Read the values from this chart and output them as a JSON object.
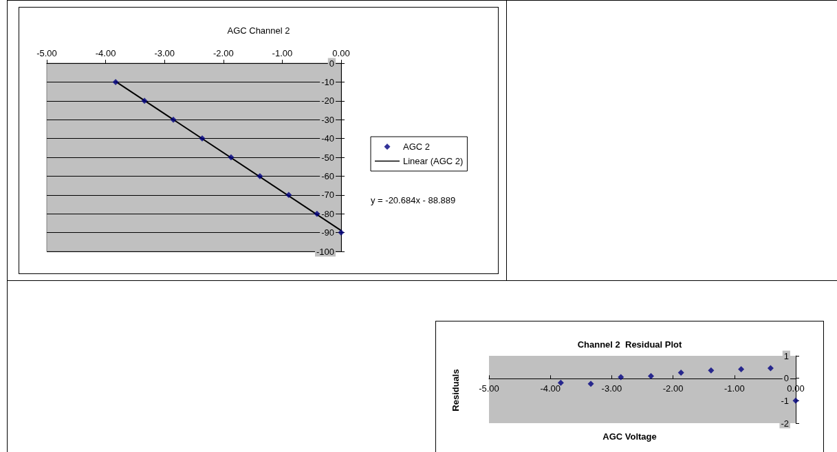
{
  "chart_data": [
    {
      "type": "scatter",
      "title": "AGC Channel 2",
      "x": [
        -3.83,
        -3.34,
        -2.85,
        -2.36,
        -1.87,
        -1.38,
        -0.89,
        -0.41,
        0
      ],
      "series": [
        {
          "name": "AGC 2",
          "color": "#000080",
          "values": [
            -10,
            -20,
            -30,
            -40,
            -50,
            -60,
            -70,
            -80,
            -90
          ]
        },
        {
          "name": "Linear (AGC 2)",
          "type": "line",
          "color": "#000000",
          "x": [
            -3.83,
            0
          ],
          "values": [
            -9.7,
            -88.9
          ],
          "marker": "none"
        }
      ],
      "xlim": [
        -5,
        0
      ],
      "ylim": [
        -100,
        0
      ],
      "xticks": [
        {
          "value": -5,
          "label": "-5.00"
        },
        {
          "value": -4,
          "label": "-4.00"
        },
        {
          "value": -3,
          "label": "-3.00"
        },
        {
          "value": -2,
          "label": "-2.00"
        },
        {
          "value": -1,
          "label": "-1.00"
        },
        {
          "value": 0,
          "label": "0.00"
        }
      ],
      "yticks": [
        -100,
        -90,
        -80,
        -70,
        -60,
        -50,
        -40,
        -30,
        -20,
        -10,
        0
      ],
      "grid": "y",
      "legend": "right",
      "marker": "diamond",
      "line_style": "solid",
      "annotations": [
        "y = -20.684x - 88.889"
      ]
    },
    {
      "type": "scatter",
      "title": "Channel 2  Residual Plot",
      "xlabel": "AGC Voltage",
      "ylabel": "Residuals",
      "x": [
        -3.83,
        -3.34,
        -2.85,
        -2.36,
        -1.87,
        -1.38,
        -0.89,
        -0.41,
        0
      ],
      "series": [
        {
          "color": "#000080",
          "values": [
            -0.2,
            -0.25,
            0.05,
            0.1,
            0.25,
            0.35,
            0.4,
            0.45,
            -1
          ]
        }
      ],
      "xlim": [
        -5,
        0
      ],
      "ylim": [
        -2,
        1
      ],
      "xticks": [
        {
          "value": -5,
          "label": "-5.00"
        },
        {
          "value": -4,
          "label": "-4.00"
        },
        {
          "value": -3,
          "label": "-3.00"
        },
        {
          "value": -2,
          "label": "-2.00"
        },
        {
          "value": -1,
          "label": "-1.00"
        },
        {
          "value": 0,
          "label": "0.00"
        }
      ],
      "yticks": [
        -2,
        -1,
        0,
        1
      ],
      "grid": false,
      "legend": false,
      "marker": "diamond"
    }
  ]
}
